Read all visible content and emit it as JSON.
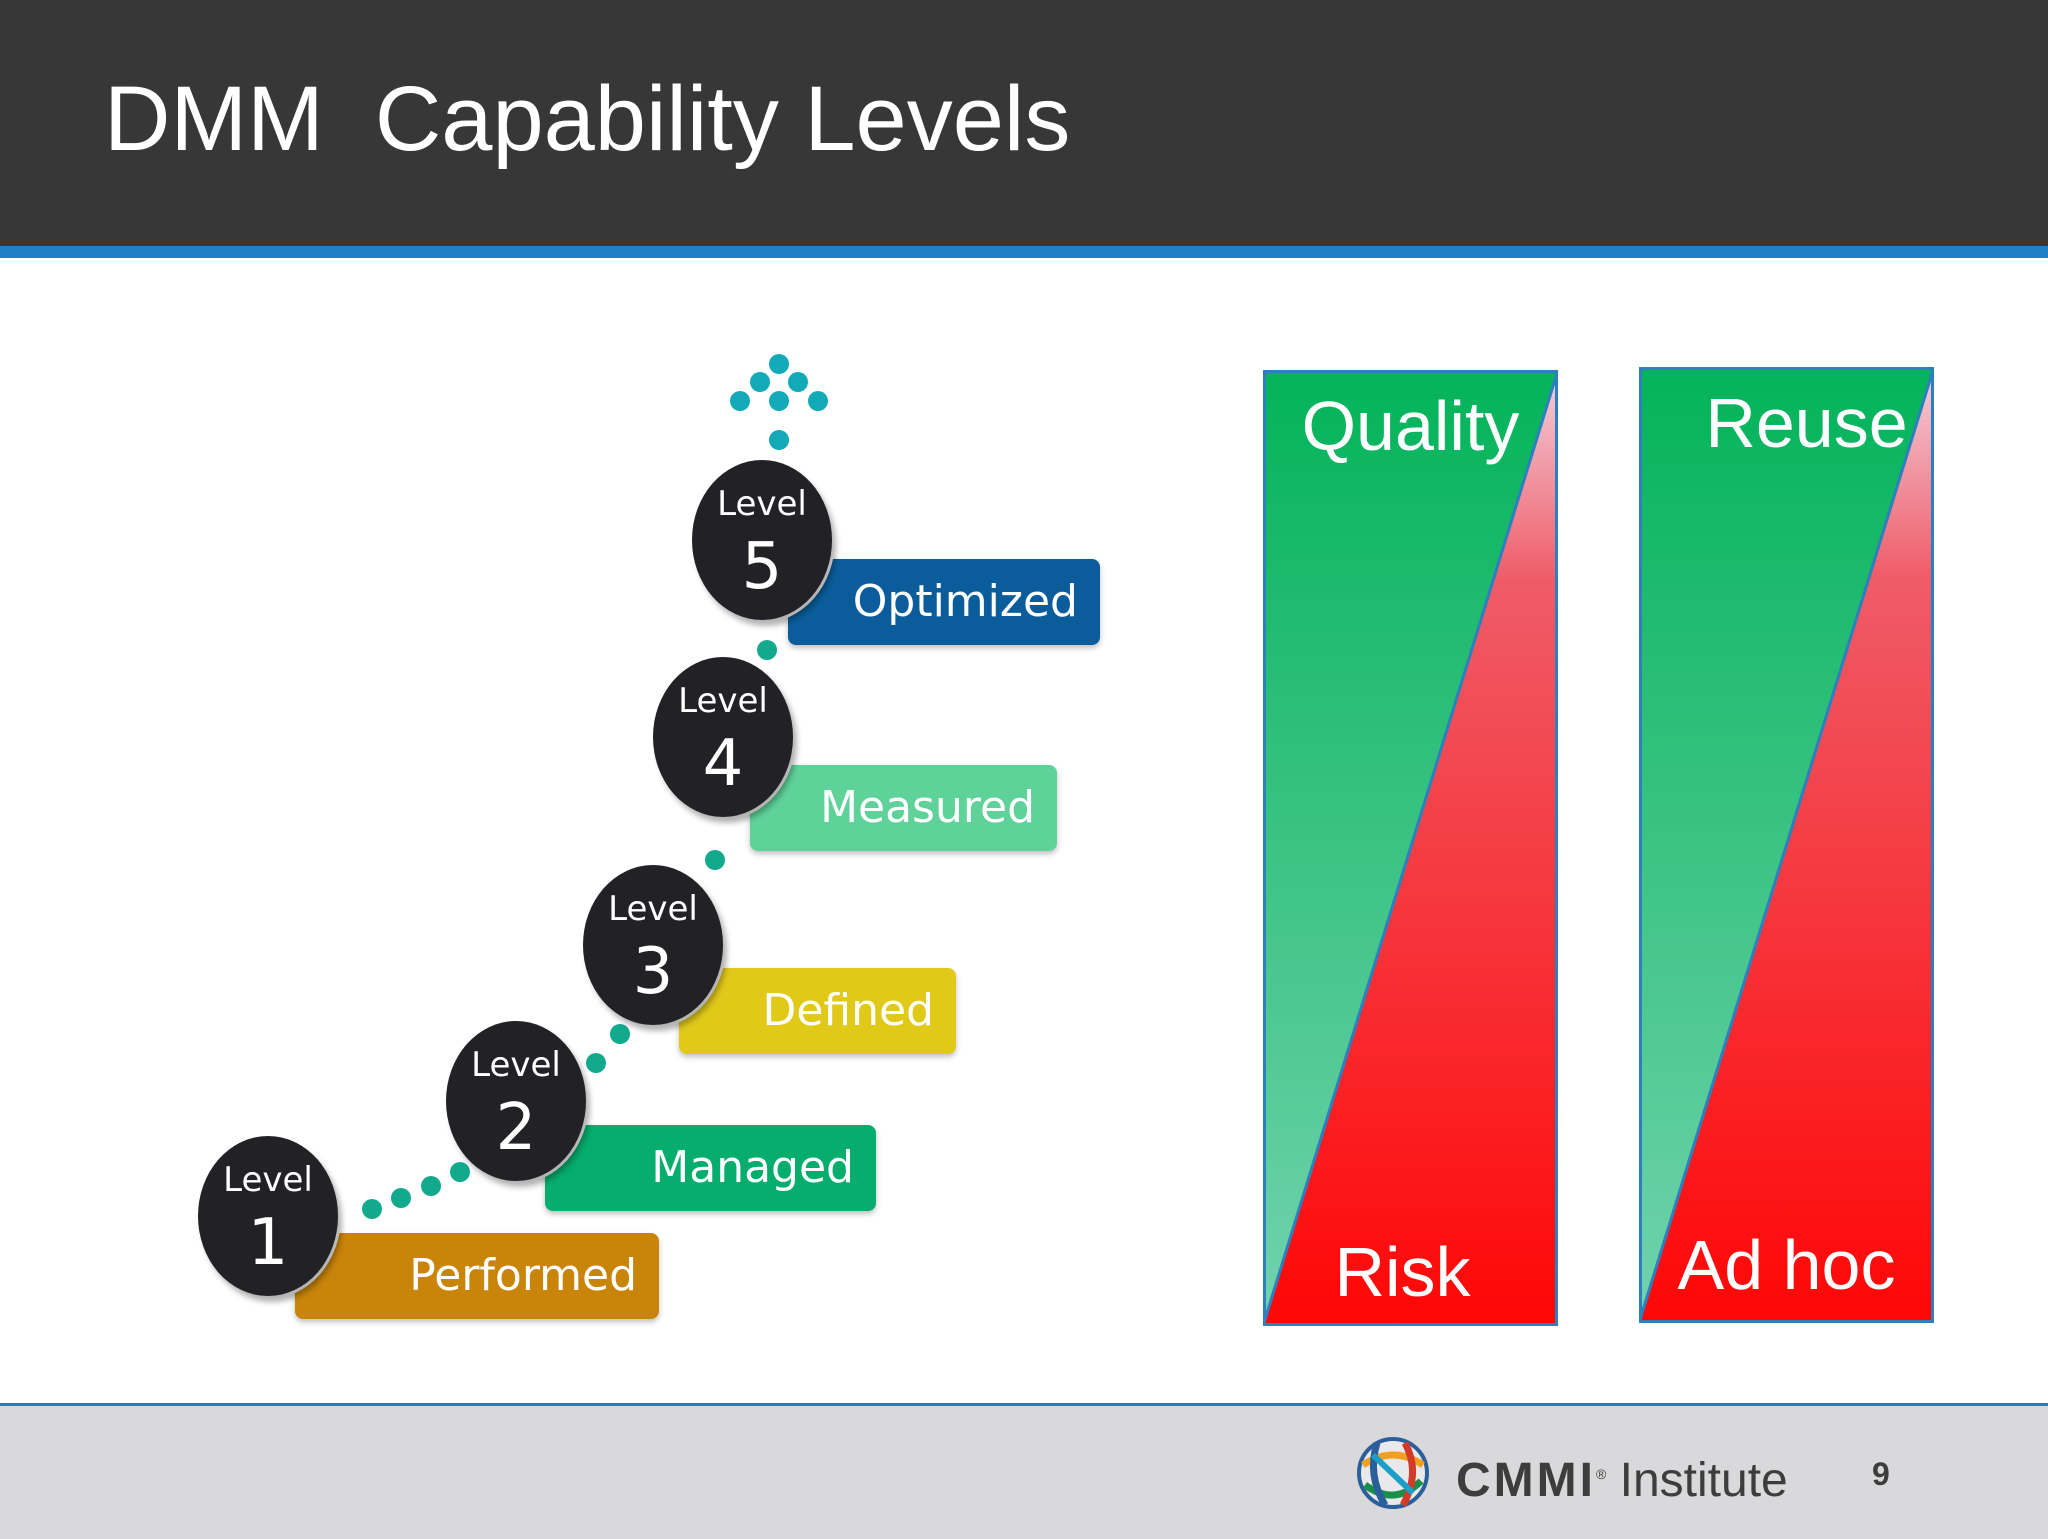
{
  "header": {
    "title": "DMM  Capability Levels"
  },
  "levels": [
    {
      "word": "Level",
      "number": "1",
      "stage": "Performed",
      "color": "#c9840a"
    },
    {
      "word": "Level",
      "number": "2",
      "stage": "Managed",
      "color": "#06ad6c"
    },
    {
      "word": "Level",
      "number": "3",
      "stage": "Defined",
      "color": "#e1c91a"
    },
    {
      "word": "Level",
      "number": "4",
      "stage": "Measured",
      "color": "#5fd29a"
    },
    {
      "word": "Level",
      "number": "5",
      "stage": "Optimized",
      "color": "#0a5d9a"
    }
  ],
  "panels": [
    {
      "top": "Quality",
      "bottom": "Risk"
    },
    {
      "top": "Reuse",
      "bottom": "Ad hoc"
    }
  ],
  "colors": {
    "header": "#373737",
    "accent": "#1f80c8",
    "green": "#06b25d",
    "red": "#ff0a0a",
    "dots": "#12a98d"
  },
  "footer": {
    "brand": "CMMI",
    "brand_suffix": "Institute",
    "page_number": "9",
    "logo_icon": "cmmi-globe-logo"
  }
}
